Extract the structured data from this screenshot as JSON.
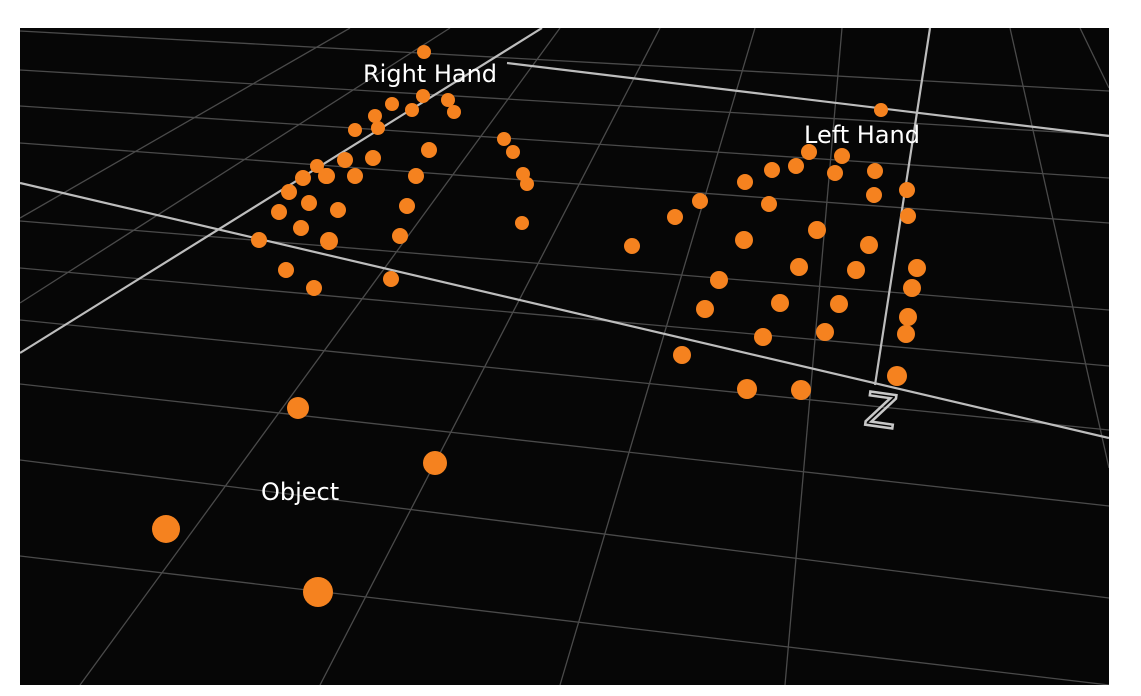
{
  "scene": {
    "background_color": "#060606",
    "grid_color": "#4a4a4a",
    "axis_color": "#bdbdbd",
    "marker_color": "#f5821f"
  },
  "labels": {
    "right_hand": "Right Hand",
    "left_hand": "Left Hand",
    "object": "Object",
    "axis": "Z"
  },
  "groups": [
    "Right Hand",
    "Left Hand",
    "Object"
  ]
}
